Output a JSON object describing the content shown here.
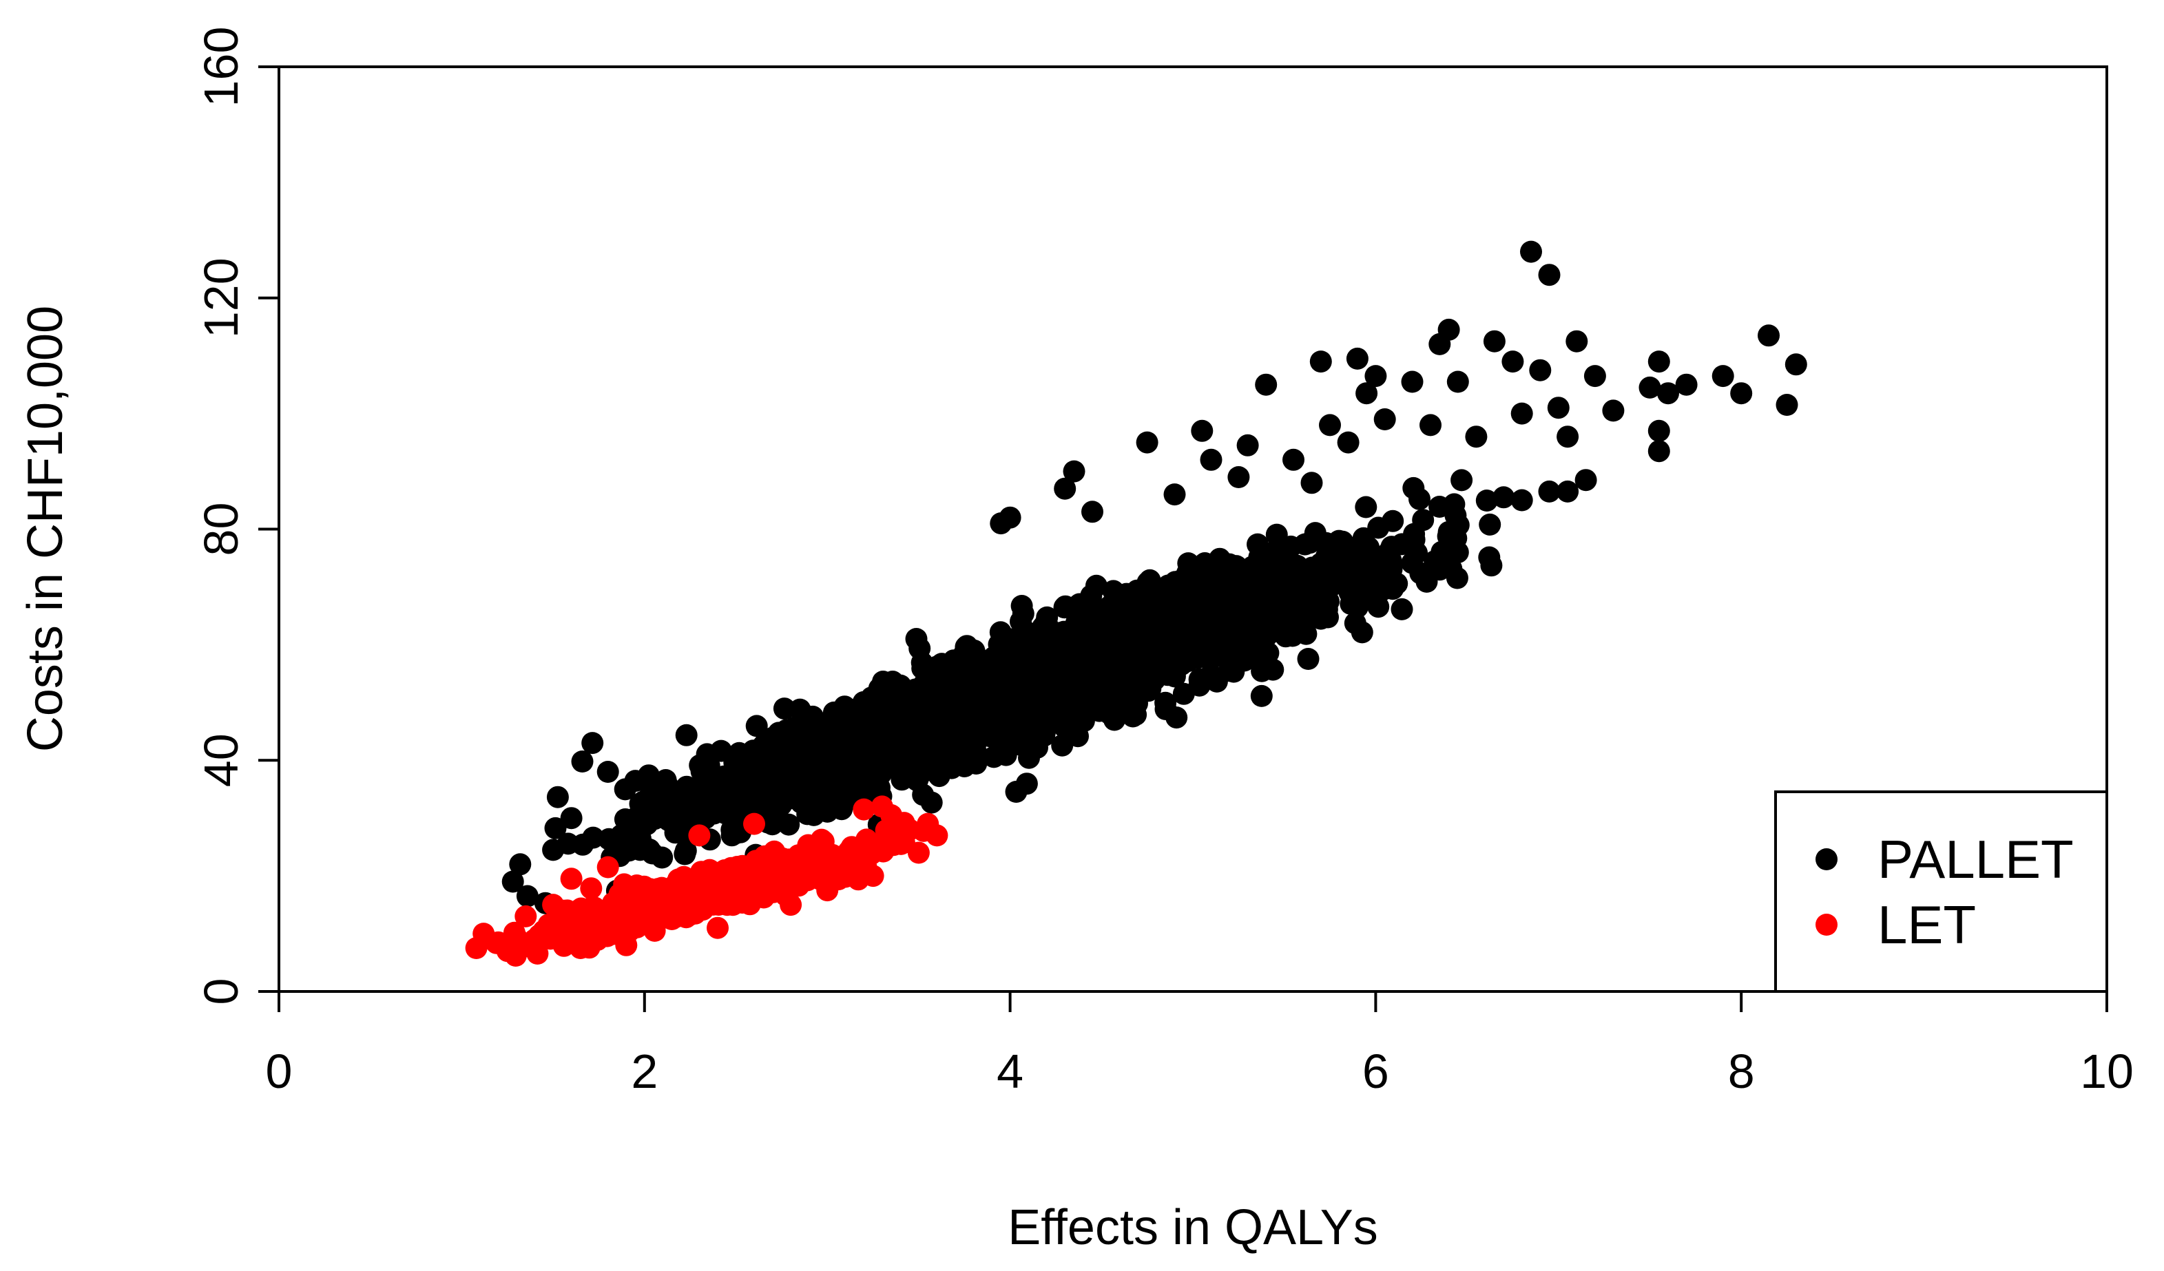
{
  "chart_data": {
    "type": "scatter",
    "title": "",
    "xlabel": "Effects in QALYs",
    "ylabel": "Costs in CHF10,000",
    "xlim": [
      0,
      10
    ],
    "ylim": [
      0,
      160
    ],
    "x_ticks": [
      "0",
      "2",
      "4",
      "6",
      "8",
      "10"
    ],
    "y_ticks": [
      "0",
      "40",
      "80",
      "120",
      "160"
    ],
    "grid": false,
    "legend_position": "bottom-right",
    "series": [
      {
        "name": "PALLET",
        "color": "#000000",
        "distribution": {
          "x_range": [
            1.3,
            6.9
          ],
          "slope": 11.2,
          "intercept": 7,
          "band_spread": 10
        },
        "points": [
          [
            1.28,
            19.0
          ],
          [
            1.32,
            22.0
          ],
          [
            1.36,
            16.5
          ],
          [
            1.5,
            24.5
          ],
          [
            1.6,
            30.0
          ],
          [
            1.8,
            38.0
          ],
          [
            3.5,
            37.5
          ],
          [
            3.65,
            39.0
          ],
          [
            3.9,
            45.5
          ],
          [
            3.95,
            81.0
          ],
          [
            4.0,
            82.0
          ],
          [
            4.3,
            87.0
          ],
          [
            4.35,
            90.0
          ],
          [
            4.45,
            83.0
          ],
          [
            4.75,
            95.0
          ],
          [
            4.9,
            86.0
          ],
          [
            5.05,
            97.0
          ],
          [
            5.1,
            92.0
          ],
          [
            5.25,
            89.0
          ],
          [
            5.3,
            94.5
          ],
          [
            5.4,
            105.0
          ],
          [
            5.55,
            92.0
          ],
          [
            5.65,
            88.0
          ],
          [
            5.7,
            109.0
          ],
          [
            5.75,
            98.0
          ],
          [
            5.85,
            95.0
          ],
          [
            5.9,
            109.5
          ],
          [
            5.95,
            103.5
          ],
          [
            6.0,
            106.5
          ],
          [
            6.05,
            99.0
          ],
          [
            6.2,
            105.5
          ],
          [
            6.3,
            98.0
          ],
          [
            6.35,
            112.0
          ],
          [
            6.4,
            114.5
          ],
          [
            6.45,
            105.5
          ],
          [
            6.55,
            96.0
          ],
          [
            6.65,
            112.5
          ],
          [
            6.75,
            109.0
          ],
          [
            6.8,
            100.0
          ],
          [
            6.85,
            128.0
          ],
          [
            6.9,
            107.5
          ],
          [
            6.95,
            124.0
          ],
          [
            7.0,
            101.0
          ],
          [
            7.05,
            96.0
          ],
          [
            7.1,
            112.5
          ],
          [
            7.2,
            106.5
          ],
          [
            7.3,
            100.5
          ],
          [
            7.5,
            104.5
          ],
          [
            7.55,
            109.0
          ],
          [
            7.55,
            97.0
          ],
          [
            7.55,
            93.5
          ],
          [
            7.6,
            103.5
          ],
          [
            7.7,
            105.0
          ],
          [
            7.9,
            106.5
          ],
          [
            8.0,
            103.5
          ],
          [
            8.15,
            113.5
          ],
          [
            8.25,
            101.5
          ],
          [
            8.3,
            108.5
          ],
          [
            7.15,
            88.5
          ],
          [
            7.05,
            86.5
          ],
          [
            6.7,
            85.5
          ],
          [
            6.8,
            85.0
          ],
          [
            6.95,
            86.5
          ],
          [
            6.4,
            79.5
          ],
          [
            6.45,
            76.0
          ],
          [
            6.35,
            73.0
          ],
          [
            5.7,
            64.5
          ],
          [
            5.9,
            66.5
          ],
          [
            5.3,
            73.0
          ],
          [
            5.0,
            62.0
          ],
          [
            4.6,
            52.5
          ],
          [
            4.3,
            47.5
          ]
        ]
      },
      {
        "name": "LET",
        "color": "#ff0000",
        "distribution": {
          "x_range": [
            1.1,
            3.6
          ],
          "slope": 8.0,
          "intercept": -1.5,
          "band_spread": 3.5
        },
        "points": [
          [
            1.08,
            7.5
          ],
          [
            1.12,
            10.0
          ],
          [
            1.2,
            8.5
          ],
          [
            1.25,
            7.0
          ],
          [
            1.35,
            13.0
          ],
          [
            1.4,
            9.0
          ],
          [
            1.5,
            15.0
          ],
          [
            1.6,
            19.5
          ],
          [
            1.65,
            7.5
          ],
          [
            1.8,
            21.5
          ],
          [
            1.9,
            8.0
          ],
          [
            2.3,
            27.0
          ],
          [
            2.4,
            11.0
          ],
          [
            2.6,
            29.0
          ],
          [
            2.8,
            15.0
          ],
          [
            3.0,
            17.5
          ],
          [
            3.2,
            31.5
          ],
          [
            3.25,
            20.0
          ],
          [
            3.3,
            32.0
          ],
          [
            3.35,
            30.5
          ],
          [
            3.45,
            28.0
          ],
          [
            3.5,
            24.0
          ],
          [
            3.55,
            29.0
          ],
          [
            3.6,
            27.0
          ]
        ]
      }
    ]
  }
}
